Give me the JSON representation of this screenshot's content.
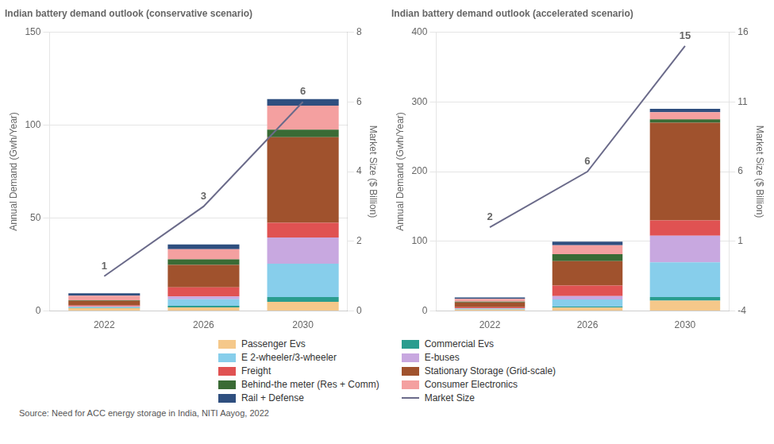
{
  "chart_data": [
    {
      "type": "bar",
      "title": "Indian battery demand outlook (conservative scenario)",
      "x": [
        2022,
        2026,
        2030
      ],
      "xlim": [
        2019.8,
        2031.8
      ],
      "xticks": [
        2022,
        2026,
        2030
      ],
      "ylim": [
        0,
        150
      ],
      "yticks": [
        0,
        50,
        100,
        150
      ],
      "y2lim": [
        0,
        8
      ],
      "y2ticks": [
        0,
        2,
        4,
        6,
        8
      ],
      "ylabel": "Annual Demand (Gwh/Year)",
      "y2label": "Market Size ($ Billion)",
      "stacked": true,
      "grid": true,
      "legend": "bottom",
      "annotations": [
        "Source: Need for ACC energy storage in India, NITI Aayog, 2022"
      ],
      "series": [
        {
          "name": "Passenger Evs",
          "color": "#F5C88A",
          "values": [
            1.5,
            2.0,
            5.0
          ]
        },
        {
          "name": "Commercial Evs",
          "color": "#2A9D8F",
          "values": [
            0.2,
            0.8,
            2.5
          ]
        },
        {
          "name": "E 2-wheeler/3-wheeler",
          "color": "#87CEEB",
          "values": [
            0.5,
            3.5,
            18.0
          ]
        },
        {
          "name": "E-buses",
          "color": "#C8A8E0",
          "values": [
            0.3,
            1.5,
            14.0
          ]
        },
        {
          "name": "Freight",
          "color": "#E05252",
          "values": [
            0.5,
            5.0,
            8.0
          ]
        },
        {
          "name": "Stationary Storage (Grid-scale)",
          "color": "#A0522D",
          "values": [
            2.5,
            12.0,
            46.0
          ]
        },
        {
          "name": "Behind-the meter (Res + Comm)",
          "color": "#3A6B35",
          "values": [
            0.3,
            3.0,
            4.0
          ]
        },
        {
          "name": "Consumer Electronics",
          "color": "#F4A0A0",
          "values": [
            2.5,
            5.5,
            13.0
          ]
        },
        {
          "name": "Rail + Defense",
          "color": "#2F4F7F",
          "values": [
            1.2,
            2.5,
            3.5
          ]
        },
        {
          "name": "Market Size",
          "type": "line",
          "axis": "y2",
          "color": "#6B6B8A",
          "values": [
            1,
            3,
            6
          ],
          "data_labels": true
        }
      ]
    },
    {
      "type": "bar",
      "title": "Indian battery demand outlook (accelerated scenario)",
      "x": [
        2022,
        2026,
        2030
      ],
      "xlim": [
        2019.8,
        2031.8
      ],
      "xticks": [
        2022,
        2026,
        2030
      ],
      "ylim": [
        0,
        400
      ],
      "yticks": [
        0,
        100,
        200,
        300,
        400
      ],
      "y2lim": [
        -4,
        16
      ],
      "y2ticks": [
        -4,
        1,
        6,
        11,
        16
      ],
      "ylabel": "Annual Demand (Gwh/Year)",
      "y2label": "Market Size ($ Billion)",
      "stacked": true,
      "grid": true,
      "legend": "bottom",
      "series": [
        {
          "name": "Passenger Evs",
          "color": "#F5C88A",
          "values": [
            2.0,
            5.0,
            15.0
          ]
        },
        {
          "name": "Commercial Evs",
          "color": "#2A9D8F",
          "values": [
            0.5,
            1.5,
            5.0
          ]
        },
        {
          "name": "E 2-wheeler/3-wheeler",
          "color": "#87CEEB",
          "values": [
            1.0,
            10.0,
            50.0
          ]
        },
        {
          "name": "E-buses",
          "color": "#C8A8E0",
          "values": [
            0.5,
            5.0,
            38.0
          ]
        },
        {
          "name": "Freight",
          "color": "#E05252",
          "values": [
            1.5,
            15.0,
            22.0
          ]
        },
        {
          "name": "Stationary Storage (Grid-scale)",
          "color": "#A0522D",
          "values": [
            7.0,
            35.0,
            140.0
          ]
        },
        {
          "name": "Behind-the meter (Res + Comm)",
          "color": "#3A6B35",
          "values": [
            1.0,
            10.0,
            5.0
          ]
        },
        {
          "name": "Consumer Electronics",
          "color": "#F4A0A0",
          "values": [
            4.0,
            13.0,
            10.0
          ]
        },
        {
          "name": "Rail + Defense",
          "color": "#2F4F7F",
          "values": [
            2.0,
            5.0,
            5.0
          ]
        },
        {
          "name": "Market Size",
          "type": "line",
          "axis": "y2",
          "color": "#6B6B8A",
          "values": [
            2,
            6,
            15
          ],
          "data_labels": true
        }
      ]
    }
  ]
}
